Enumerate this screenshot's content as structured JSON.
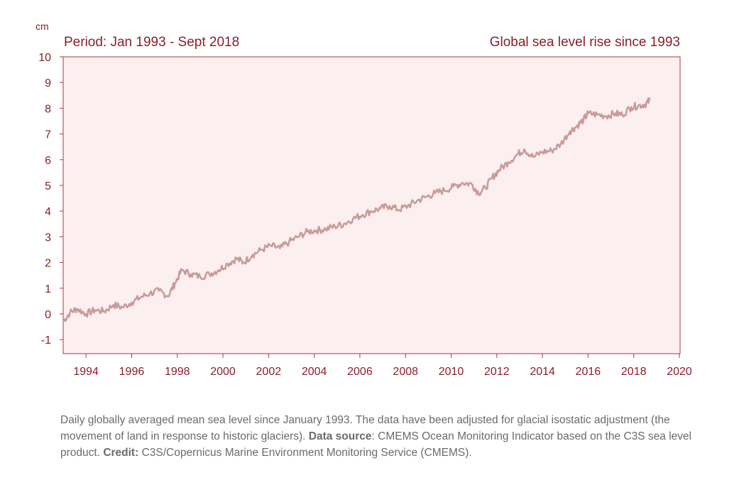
{
  "chart_data": {
    "type": "line",
    "title_left": "Period: Jan 1993 - Sept 2018",
    "title_right": "Global sea level rise since 1993",
    "ylabel": "cm",
    "xlabel": "",
    "xlim": [
      1993,
      2020
    ],
    "ylim": [
      -1.5,
      10
    ],
    "yticks": [
      -1,
      0,
      1,
      2,
      3,
      4,
      5,
      6,
      7,
      8,
      9,
      10
    ],
    "xticks": [
      1994,
      1996,
      1998,
      2000,
      2002,
      2004,
      2006,
      2008,
      2010,
      2012,
      2014,
      2016,
      2018,
      2020
    ],
    "grid": false,
    "series": [
      {
        "color": "#c99a97",
        "x": [
          1993.0,
          1993.3,
          1993.6,
          1994.0,
          1994.4,
          1994.8,
          1995.2,
          1995.6,
          1996.0,
          1996.4,
          1996.8,
          1997.2,
          1997.6,
          1997.9,
          1998.2,
          1998.6,
          1999.0,
          1999.4,
          1999.8,
          2000.2,
          2000.6,
          2000.9,
          2001.3,
          2001.7,
          2002.1,
          2002.5,
          2002.9,
          2003.3,
          2003.7,
          2004.1,
          2004.5,
          2004.9,
          2005.3,
          2005.7,
          2006.1,
          2006.5,
          2006.9,
          2007.3,
          2007.7,
          2008.1,
          2008.5,
          2008.9,
          2009.3,
          2009.7,
          2010.1,
          2010.5,
          2010.9,
          2011.2,
          2011.5,
          2011.8,
          2012.1,
          2012.5,
          2012.9,
          2013.2,
          2013.6,
          2014.0,
          2014.4,
          2014.8,
          2015.2,
          2015.5,
          2015.8,
          2016.0,
          2016.4,
          2016.8,
          2017.2,
          2017.5,
          2017.9,
          2018.2,
          2018.5,
          2018.7
        ],
        "values": [
          -0.3,
          0.05,
          0.2,
          0.0,
          0.15,
          0.1,
          0.35,
          0.25,
          0.45,
          0.65,
          0.8,
          0.9,
          0.7,
          1.2,
          1.7,
          1.55,
          1.45,
          1.55,
          1.7,
          1.95,
          2.15,
          2.0,
          2.3,
          2.5,
          2.65,
          2.55,
          2.8,
          3.0,
          3.2,
          3.25,
          3.3,
          3.4,
          3.5,
          3.7,
          3.85,
          4.0,
          4.1,
          4.2,
          4.05,
          4.2,
          4.4,
          4.55,
          4.7,
          4.8,
          4.95,
          5.1,
          5.05,
          4.7,
          4.9,
          5.3,
          5.6,
          5.9,
          6.2,
          6.4,
          6.1,
          6.3,
          6.35,
          6.6,
          7.1,
          7.3,
          7.55,
          7.8,
          7.75,
          7.7,
          7.8,
          7.75,
          8.05,
          8.1,
          8.15,
          8.3
        ]
      }
    ]
  },
  "caption": {
    "text1": "Daily globally averaged mean sea level since January 1993. The data have been adjusted for glacial isostatic adjustment (the movement of land in response to historic glaciers). ",
    "source_label": "Data source",
    "text2": ": CMEMS Ocean Monitoring Indicator based on the C3S sea level product. ",
    "credit_label": "Credit:",
    "text3": " C3S/Copernicus Marine Environment Monitoring Service (CMEMS)."
  }
}
